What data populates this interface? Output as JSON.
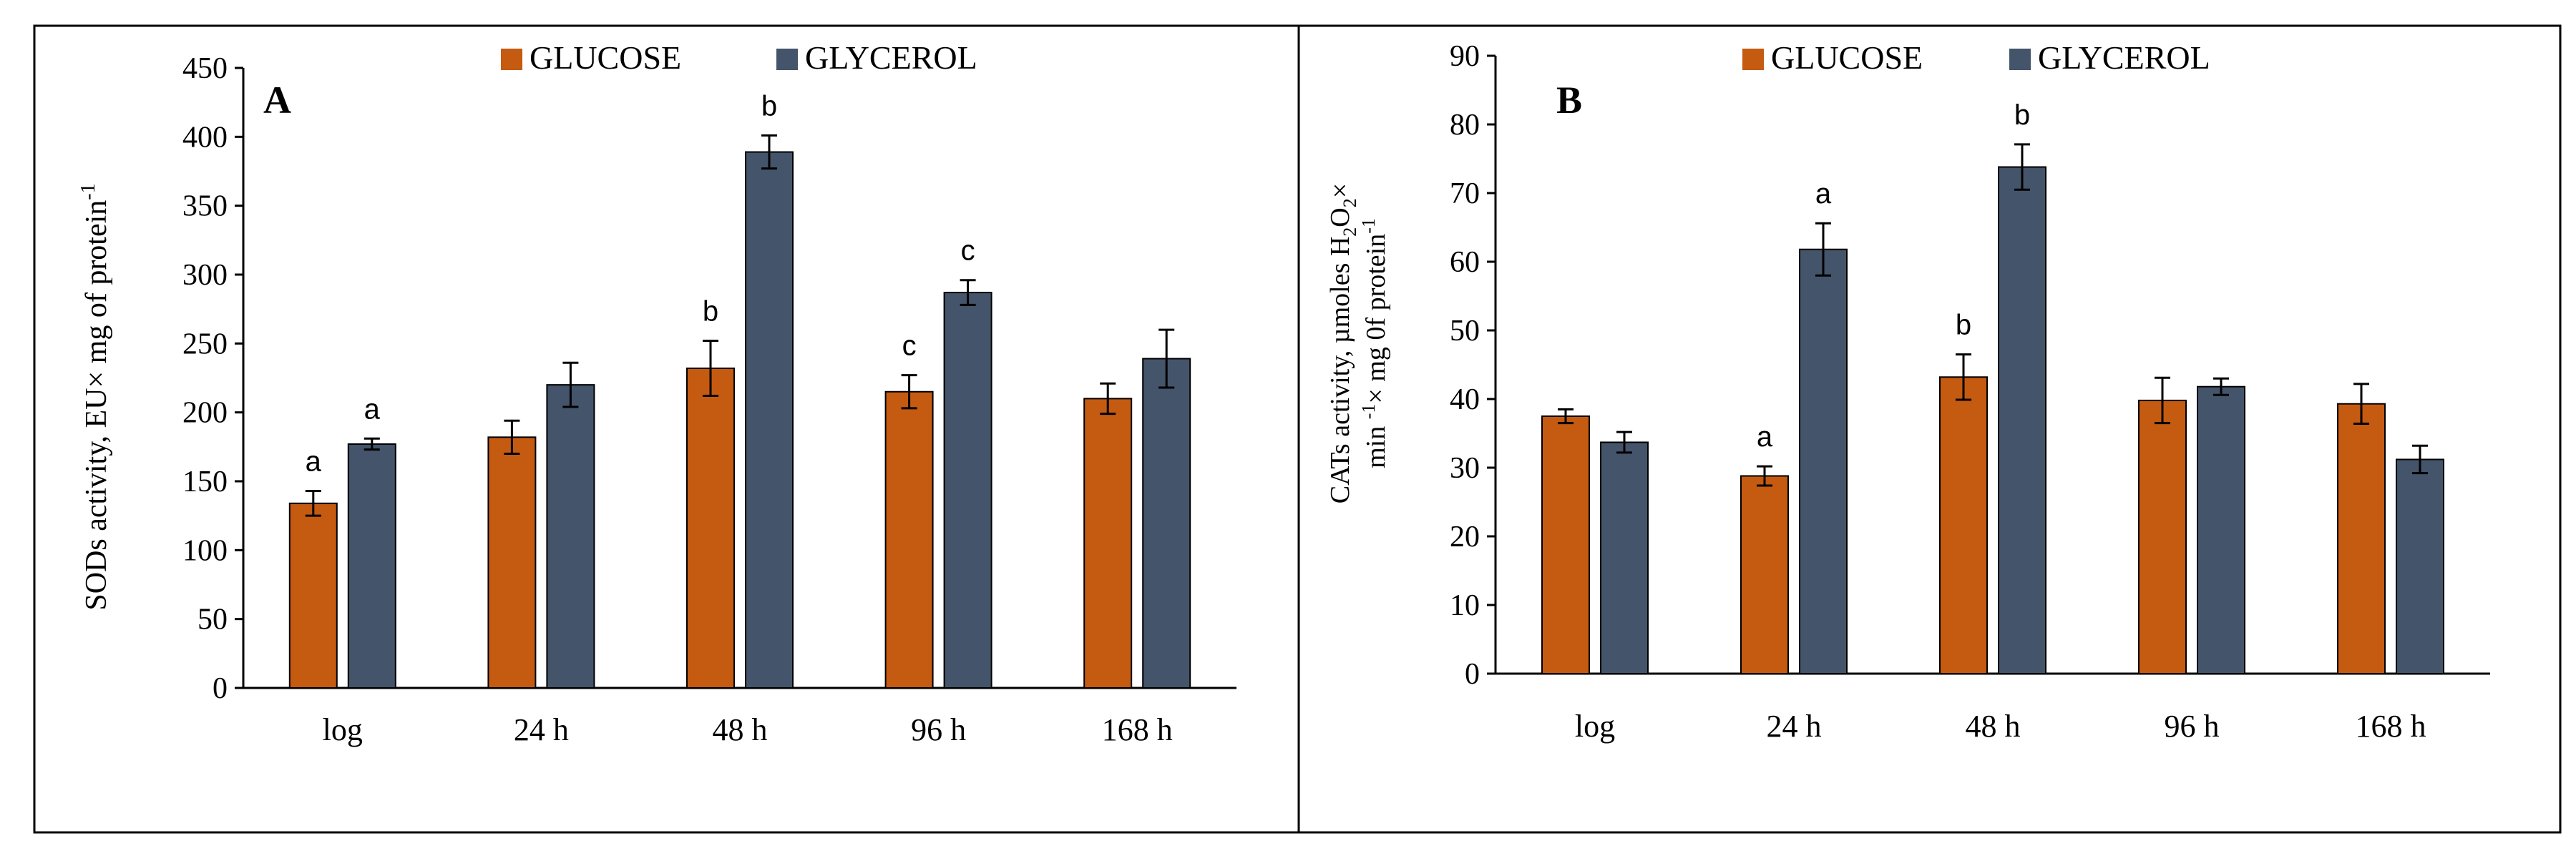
{
  "colors": {
    "glucose": "#c55a11",
    "glycerol": "#44546a",
    "frame": "#000000",
    "axis": "#000000"
  },
  "legend": {
    "glucose_label": "GLUCOSE",
    "glycerol_label": "GLYCEROL"
  },
  "chart_data": [
    {
      "type": "bar",
      "panel_label": "A",
      "ylabel_parts": {
        "main": "SODs activity, EU× mg of protein",
        "sup": "-1"
      },
      "ylim": [
        0,
        450
      ],
      "yticks": [
        0,
        50,
        100,
        150,
        200,
        250,
        300,
        350,
        400,
        450
      ],
      "categories": [
        "log",
        "24 h",
        "48 h",
        "96 h",
        "168 h"
      ],
      "series": [
        {
          "name": "GLUCOSE",
          "color_key": "glucose",
          "values": [
            134,
            182,
            232,
            215,
            210
          ],
          "errors": [
            9,
            12,
            20,
            12,
            11
          ],
          "labels": [
            "a",
            "",
            "b",
            "c",
            ""
          ]
        },
        {
          "name": "GLYCEROL",
          "color_key": "glycerol",
          "values": [
            177,
            220,
            389,
            287,
            239
          ],
          "errors": [
            4,
            16,
            12,
            9,
            21
          ],
          "labels": [
            "a",
            "",
            "b",
            "c",
            ""
          ]
        }
      ]
    },
    {
      "type": "bar",
      "panel_label": "B",
      "ylabel_parts": {
        "line1_a": "CATs activity, µmoles H",
        "line1_sub": "2",
        "line1_b": "O",
        "line1_sub2": "2",
        "line1_c": "×",
        "line2_a": "min ",
        "line2_sup": "-1",
        "line2_b": "× mg 0f protein",
        "line2_sup2": "-1"
      },
      "ylim": [
        0,
        90
      ],
      "yticks": [
        0,
        10,
        20,
        30,
        40,
        50,
        60,
        70,
        80,
        90
      ],
      "categories": [
        "log",
        "24 h",
        "48 h",
        "96 h",
        "168 h"
      ],
      "series": [
        {
          "name": "GLUCOSE",
          "color_key": "glucose",
          "values": [
            37.5,
            28.8,
            43.2,
            39.8,
            39.3
          ],
          "errors": [
            1,
            1.4,
            3.3,
            3.3,
            2.9
          ],
          "labels": [
            "",
            "a",
            "b",
            "",
            ""
          ]
        },
        {
          "name": "GLYCEROL",
          "color_key": "glycerol",
          "values": [
            33.7,
            61.8,
            73.8,
            41.8,
            31.2
          ],
          "errors": [
            1.5,
            3.8,
            3.3,
            1.2,
            2
          ],
          "labels": [
            "",
            "a",
            "b",
            "",
            ""
          ]
        }
      ]
    }
  ]
}
